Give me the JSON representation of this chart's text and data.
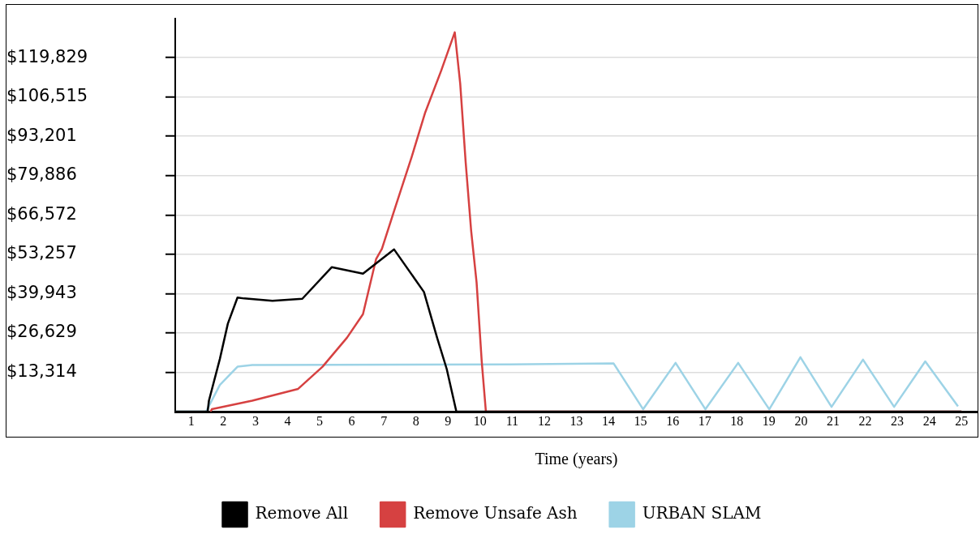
{
  "chart_data": {
    "type": "line",
    "xlabel": "Time (years)",
    "xlim": [
      0.5,
      25.5
    ],
    "xticks": [
      1,
      2,
      3,
      4,
      5,
      6,
      7,
      8,
      9,
      10,
      11,
      12,
      13,
      14,
      15,
      16,
      17,
      18,
      19,
      20,
      21,
      22,
      23,
      24,
      25
    ],
    "ylim": [
      0,
      133143
    ],
    "yticks": [
      {
        "value": 13314,
        "label": "$13,314"
      },
      {
        "value": 26629,
        "label": "$26,629"
      },
      {
        "value": 39943,
        "label": "$39,943"
      },
      {
        "value": 53257,
        "label": "$53,257"
      },
      {
        "value": 66572,
        "label": "$66,572"
      },
      {
        "value": 79886,
        "label": "$79,886"
      },
      {
        "value": 93201,
        "label": "$93,201"
      },
      {
        "value": 106515,
        "label": "$106,515"
      },
      {
        "value": 119829,
        "label": "$119,829"
      }
    ],
    "grid": "y",
    "legend": "bottom",
    "marker": "none",
    "line_style": "solid",
    "series": [
      {
        "name": "Remove All",
        "color": "#000000",
        "x": [
          0.5,
          1.51,
          1.55,
          1.89,
          2.14,
          2.44,
          2.65,
          3.53,
          4.46,
          5.38,
          6.35,
          7.32,
          8.25,
          8.66,
          8.96,
          9.26,
          25
        ],
        "values": [
          0,
          0,
          3700,
          17800,
          29800,
          38600,
          38300,
          37500,
          38200,
          48900,
          46700,
          54900,
          40500,
          25000,
          14400,
          0,
          0
        ]
      },
      {
        "name": "Remove Unsafe Ash",
        "color": "#d64141",
        "x": [
          1.6,
          1.64,
          2.9,
          4.33,
          5.09,
          5.85,
          6.35,
          6.76,
          6.94,
          7.44,
          7.87,
          8.29,
          8.79,
          9.21,
          9.38,
          9.55,
          9.72,
          9.89,
          10.05,
          10.18,
          25
        ],
        "values": [
          0,
          800,
          3700,
          7700,
          15200,
          25000,
          33000,
          51700,
          55100,
          72000,
          86300,
          101300,
          115500,
          128400,
          111000,
          84400,
          61300,
          43700,
          17000,
          0,
          0
        ]
      },
      {
        "name": "URBAN SLAM",
        "color": "#9dd3e6",
        "x": [
          0.5,
          1.46,
          1.89,
          2.44,
          2.9,
          10.9,
          14.16,
          15.08,
          16.09,
          17.02,
          18.04,
          19.01,
          19.98,
          20.95,
          21.93,
          22.9,
          23.87,
          24.89
        ],
        "values": [
          0,
          0,
          9000,
          15200,
          15800,
          16000,
          16300,
          800,
          16500,
          800,
          16500,
          800,
          18400,
          1600,
          17600,
          1600,
          17000,
          1800
        ]
      }
    ]
  }
}
